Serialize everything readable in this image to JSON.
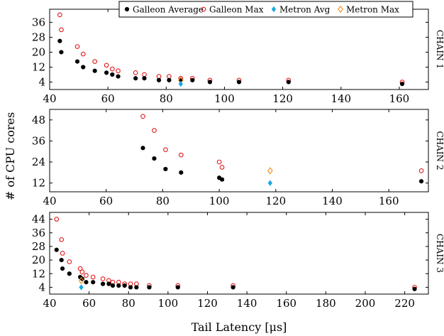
{
  "figure": {
    "ylabel": "# of CPU cores",
    "xlabel": "Tail Latency [μs]",
    "legend_position": "top-right, above first panel"
  },
  "legend": [
    {
      "key": "galleon_avg",
      "label": "Galleon Average",
      "marker": "filled-circle",
      "color": "#000000"
    },
    {
      "key": "galleon_max",
      "label": "Galleon Max",
      "marker": "open-circle",
      "color": "#e41a1c"
    },
    {
      "key": "metron_avg",
      "label": "Metron Avg",
      "marker": "filled-diamond",
      "color": "#1ca9e0"
    },
    {
      "key": "metron_max",
      "label": "Metron Max",
      "marker": "open-diamond",
      "color": "#f08c1c"
    }
  ],
  "chart_data": [
    {
      "type": "scatter",
      "panel_label": "CHAIN 1",
      "xlim": [
        40,
        170
      ],
      "xticks": [
        40,
        60,
        80,
        100,
        120,
        140,
        160
      ],
      "ylim": [
        0,
        43
      ],
      "yticks": [
        4,
        12,
        20,
        28,
        36
      ],
      "grid": false,
      "series": [
        {
          "key": "galleon_avg",
          "name": "Galleon Average",
          "points": [
            [
              43.5,
              26
            ],
            [
              44,
              20
            ],
            [
              49.5,
              15
            ],
            [
              51.5,
              12
            ],
            [
              55.5,
              10
            ],
            [
              59.5,
              9
            ],
            [
              61.5,
              8
            ],
            [
              63.5,
              7
            ],
            [
              69.5,
              6
            ],
            [
              72.5,
              6
            ],
            [
              77.5,
              5
            ],
            [
              81,
              5
            ],
            [
              85,
              5
            ],
            [
              89,
              5
            ],
            [
              95,
              4
            ],
            [
              105,
              4
            ],
            [
              122,
              4
            ],
            [
              161,
              3
            ]
          ]
        },
        {
          "key": "galleon_max",
          "name": "Galleon Max",
          "points": [
            [
              43.5,
              40
            ],
            [
              44,
              32
            ],
            [
              49.5,
              23
            ],
            [
              51.5,
              19
            ],
            [
              55.5,
              15
            ],
            [
              59.5,
              13
            ],
            [
              61.5,
              11
            ],
            [
              63.5,
              10
            ],
            [
              69.5,
              9
            ],
            [
              72.5,
              8
            ],
            [
              77.5,
              7
            ],
            [
              81,
              7
            ],
            [
              85,
              6
            ],
            [
              89,
              6
            ],
            [
              95,
              5
            ],
            [
              105,
              5
            ],
            [
              122,
              5
            ],
            [
              161,
              4
            ]
          ]
        },
        {
          "key": "metron_avg",
          "name": "Metron Avg",
          "points": [
            [
              85,
              3
            ]
          ]
        },
        {
          "key": "metron_max",
          "name": "Metron Max",
          "points": [
            [
              85,
              5
            ]
          ]
        }
      ]
    },
    {
      "type": "scatter",
      "panel_label": "CHAIN 2",
      "xlim": [
        40,
        174
      ],
      "xticks": [
        40,
        60,
        80,
        100,
        120,
        140,
        160
      ],
      "ylim": [
        7,
        54
      ],
      "yticks": [
        12,
        24,
        36,
        48
      ],
      "grid": false,
      "series": [
        {
          "key": "galleon_avg",
          "name": "Galleon Average",
          "points": [
            [
              73,
              32
            ],
            [
              77,
              26
            ],
            [
              81,
              20
            ],
            [
              86.5,
              18
            ],
            [
              100,
              15
            ],
            [
              101,
              14
            ],
            [
              171.5,
              13
            ]
          ]
        },
        {
          "key": "galleon_max",
          "name": "Galleon Max",
          "points": [
            [
              73,
              50
            ],
            [
              77,
              42
            ],
            [
              81,
              31
            ],
            [
              86.5,
              28
            ],
            [
              100,
              24
            ],
            [
              101,
              21
            ],
            [
              171.5,
              19
            ]
          ]
        },
        {
          "key": "metron_avg",
          "name": "Metron Avg",
          "points": [
            [
              118,
              12
            ]
          ]
        },
        {
          "key": "metron_max",
          "name": "Metron Max",
          "points": [
            [
              118,
              19
            ]
          ]
        }
      ]
    },
    {
      "type": "scatter",
      "panel_label": "CHAIN 3",
      "xlim": [
        40,
        232
      ],
      "xticks": [
        40,
        60,
        80,
        100,
        120,
        140,
        160,
        180,
        200,
        220
      ],
      "ylim": [
        0,
        48
      ],
      "yticks": [
        4,
        12,
        20,
        28,
        36,
        44
      ],
      "grid": false,
      "series": [
        {
          "key": "galleon_avg",
          "name": "Galleon Average",
          "points": [
            [
              43.5,
              26
            ],
            [
              46,
              20
            ],
            [
              46.5,
              15
            ],
            [
              50,
              12
            ],
            [
              55.5,
              10
            ],
            [
              56.5,
              9
            ],
            [
              58.5,
              7
            ],
            [
              62,
              7
            ],
            [
              67,
              6
            ],
            [
              70,
              6
            ],
            [
              72,
              5
            ],
            [
              75,
              5
            ],
            [
              78,
              5
            ],
            [
              81,
              4
            ],
            [
              84,
              4
            ],
            [
              90.5,
              4
            ],
            [
              105,
              4
            ],
            [
              133,
              4
            ],
            [
              225,
              3
            ]
          ]
        },
        {
          "key": "galleon_max",
          "name": "Galleon Max",
          "points": [
            [
              43.5,
              44
            ],
            [
              46,
              32
            ],
            [
              46.5,
              24
            ],
            [
              50,
              19
            ],
            [
              55.5,
              15
            ],
            [
              56.5,
              13
            ],
            [
              58.5,
              11
            ],
            [
              62,
              10
            ],
            [
              67,
              9
            ],
            [
              70,
              8
            ],
            [
              72,
              7
            ],
            [
              75,
              7
            ],
            [
              78,
              6
            ],
            [
              81,
              6
            ],
            [
              84,
              6
            ],
            [
              90.5,
              5
            ],
            [
              105,
              5
            ],
            [
              133,
              5
            ],
            [
              225,
              4
            ]
          ]
        },
        {
          "key": "metron_avg",
          "name": "Metron Avg",
          "points": [
            [
              56,
              4
            ]
          ]
        },
        {
          "key": "metron_max",
          "name": "Metron Max",
          "points": [
            [
              56,
              8
            ]
          ]
        }
      ]
    }
  ]
}
